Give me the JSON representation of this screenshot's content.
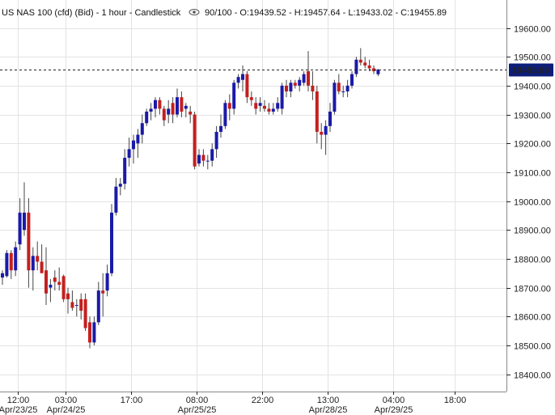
{
  "header": {
    "instrument_label": "US NAS 100 (cfd) (Bid) - 1 hour - Candlestick",
    "settings_icon": "eye-icon",
    "ohlc_label": "90/100 - O:19439.52 - H:19457.64 - L:19433.02 - C:19455.89"
  },
  "colors": {
    "up": "#1a1aa8",
    "down": "#c41f1f",
    "wick": "#444444",
    "grid": "#e3e3e3",
    "axis": "#222222",
    "price_tag_bg": "#0d1d7a",
    "price_tag_text": "#ffffff"
  },
  "chart_data": {
    "type": "candlestick",
    "title": "US NAS 100 (cfd) (Bid) - 1 hour - Candlestick",
    "xlabel": "",
    "ylabel": "",
    "ylim": [
      18340,
      19680
    ],
    "y_ticks": [
      18400,
      18500,
      18600,
      18700,
      18800,
      18900,
      19000,
      19100,
      19200,
      19300,
      19400,
      19500,
      19600
    ],
    "y_tick_labels": [
      "18400.00",
      "18500.00",
      "18600.00",
      "18700.00",
      "18800.00",
      "18900.00",
      "19000.00",
      "19100.00",
      "19200.00",
      "19300.00",
      "19400.00",
      "19500.00",
      "19600.00"
    ],
    "x_ticks": [
      {
        "index": 3.5,
        "time": "12:00",
        "date": "Apr/23/25"
      },
      {
        "index": 14.5,
        "time": "03:00",
        "date": "Apr/24/25"
      },
      {
        "index": 29.5,
        "time": "17:00",
        "date": ""
      },
      {
        "index": 44.5,
        "time": "08:00",
        "date": "Apr/25/25"
      },
      {
        "index": 59.5,
        "time": "22:00",
        "date": ""
      },
      {
        "index": 74.5,
        "time": "13:00",
        "date": "Apr/28/25"
      },
      {
        "index": 89.5,
        "time": "04:00",
        "date": "Apr/29/25"
      },
      {
        "index": 103.5,
        "time": "18:00",
        "date": ""
      }
    ],
    "current_price": 19455.89,
    "current_price_label": "19455.89",
    "grid": true,
    "candles": [
      {
        "o": 18735,
        "h": 18760,
        "l": 18710,
        "c": 18750
      },
      {
        "o": 18740,
        "h": 18830,
        "l": 18735,
        "c": 18820
      },
      {
        "o": 18820,
        "h": 18830,
        "l": 18730,
        "c": 18760
      },
      {
        "o": 18760,
        "h": 18860,
        "l": 18740,
        "c": 18840
      },
      {
        "o": 18850,
        "h": 19010,
        "l": 18830,
        "c": 18960
      },
      {
        "o": 18900,
        "h": 19065,
        "l": 18880,
        "c": 18960
      },
      {
        "o": 18960,
        "h": 19010,
        "l": 18700,
        "c": 18760
      },
      {
        "o": 18760,
        "h": 18840,
        "l": 18690,
        "c": 18810
      },
      {
        "o": 18810,
        "h": 18860,
        "l": 18760,
        "c": 18790
      },
      {
        "o": 18790,
        "h": 18850,
        "l": 18760,
        "c": 18750
      },
      {
        "o": 18760,
        "h": 18840,
        "l": 18640,
        "c": 18680
      },
      {
        "o": 18700,
        "h": 18730,
        "l": 18650,
        "c": 18710
      },
      {
        "o": 18735,
        "h": 18760,
        "l": 18690,
        "c": 18720
      },
      {
        "o": 18720,
        "h": 18770,
        "l": 18690,
        "c": 18710
      },
      {
        "o": 18740,
        "h": 18745,
        "l": 18650,
        "c": 18660
      },
      {
        "o": 18680,
        "h": 18700,
        "l": 18610,
        "c": 18660
      },
      {
        "o": 18650,
        "h": 18690,
        "l": 18620,
        "c": 18630
      },
      {
        "o": 18640,
        "h": 18660,
        "l": 18600,
        "c": 18640
      },
      {
        "o": 18660,
        "h": 18680,
        "l": 18590,
        "c": 18620
      },
      {
        "o": 18660,
        "h": 18680,
        "l": 18550,
        "c": 18560
      },
      {
        "o": 18580,
        "h": 18600,
        "l": 18490,
        "c": 18510
      },
      {
        "o": 18510,
        "h": 18600,
        "l": 18500,
        "c": 18580
      },
      {
        "o": 18580,
        "h": 18720,
        "l": 18570,
        "c": 18690
      },
      {
        "o": 18690,
        "h": 18750,
        "l": 18600,
        "c": 18680
      },
      {
        "o": 18690,
        "h": 18780,
        "l": 18670,
        "c": 18750
      },
      {
        "o": 18750,
        "h": 18990,
        "l": 18740,
        "c": 18960
      },
      {
        "o": 18960,
        "h": 19080,
        "l": 18950,
        "c": 19050
      },
      {
        "o": 19050,
        "h": 19080,
        "l": 19020,
        "c": 19060
      },
      {
        "o": 19060,
        "h": 19180,
        "l": 19040,
        "c": 19150
      },
      {
        "o": 19150,
        "h": 19220,
        "l": 19120,
        "c": 19180
      },
      {
        "o": 19180,
        "h": 19230,
        "l": 19130,
        "c": 19210
      },
      {
        "o": 19200,
        "h": 19250,
        "l": 19150,
        "c": 19230
      },
      {
        "o": 19230,
        "h": 19300,
        "l": 19200,
        "c": 19270
      },
      {
        "o": 19270,
        "h": 19320,
        "l": 19260,
        "c": 19310
      },
      {
        "o": 19310,
        "h": 19340,
        "l": 19280,
        "c": 19320
      },
      {
        "o": 19320,
        "h": 19360,
        "l": 19290,
        "c": 19350
      },
      {
        "o": 19350,
        "h": 19360,
        "l": 19300,
        "c": 19320
      },
      {
        "o": 19320,
        "h": 19330,
        "l": 19260,
        "c": 19280
      },
      {
        "o": 19300,
        "h": 19350,
        "l": 19270,
        "c": 19320
      },
      {
        "o": 19340,
        "h": 19360,
        "l": 19270,
        "c": 19300
      },
      {
        "o": 19300,
        "h": 19390,
        "l": 19290,
        "c": 19360
      },
      {
        "o": 19360,
        "h": 19380,
        "l": 19290,
        "c": 19310
      },
      {
        "o": 19320,
        "h": 19340,
        "l": 19290,
        "c": 19330
      },
      {
        "o": 19310,
        "h": 19330,
        "l": 19270,
        "c": 19300
      },
      {
        "o": 19300,
        "h": 19310,
        "l": 19110,
        "c": 19120
      },
      {
        "o": 19130,
        "h": 19180,
        "l": 19120,
        "c": 19160
      },
      {
        "o": 19160,
        "h": 19180,
        "l": 19120,
        "c": 19140
      },
      {
        "o": 19140,
        "h": 19160,
        "l": 19110,
        "c": 19140
      },
      {
        "o": 19140,
        "h": 19200,
        "l": 19120,
        "c": 19180
      },
      {
        "o": 19180,
        "h": 19260,
        "l": 19150,
        "c": 19240
      },
      {
        "o": 19240,
        "h": 19300,
        "l": 19220,
        "c": 19260
      },
      {
        "o": 19260,
        "h": 19350,
        "l": 19250,
        "c": 19340
      },
      {
        "o": 19340,
        "h": 19370,
        "l": 19280,
        "c": 19320
      },
      {
        "o": 19320,
        "h": 19420,
        "l": 19300,
        "c": 19410
      },
      {
        "o": 19410,
        "h": 19440,
        "l": 19390,
        "c": 19430
      },
      {
        "o": 19420,
        "h": 19470,
        "l": 19380,
        "c": 19440
      },
      {
        "o": 19440,
        "h": 19450,
        "l": 19340,
        "c": 19360
      },
      {
        "o": 19360,
        "h": 19380,
        "l": 19330,
        "c": 19350
      },
      {
        "o": 19340,
        "h": 19360,
        "l": 19300,
        "c": 19320
      },
      {
        "o": 19330,
        "h": 19360,
        "l": 19310,
        "c": 19340
      },
      {
        "o": 19330,
        "h": 19350,
        "l": 19310,
        "c": 19320
      },
      {
        "o": 19320,
        "h": 19340,
        "l": 19300,
        "c": 19310
      },
      {
        "o": 19310,
        "h": 19340,
        "l": 19300,
        "c": 19320
      },
      {
        "o": 19320,
        "h": 19360,
        "l": 19310,
        "c": 19340
      },
      {
        "o": 19320,
        "h": 19410,
        "l": 19300,
        "c": 19400
      },
      {
        "o": 19400,
        "h": 19420,
        "l": 19360,
        "c": 19380
      },
      {
        "o": 19380,
        "h": 19420,
        "l": 19360,
        "c": 19410
      },
      {
        "o": 19410,
        "h": 19420,
        "l": 19390,
        "c": 19400
      },
      {
        "o": 19400,
        "h": 19430,
        "l": 19380,
        "c": 19420
      },
      {
        "o": 19410,
        "h": 19450,
        "l": 19400,
        "c": 19440
      },
      {
        "o": 19450,
        "h": 19520,
        "l": 19380,
        "c": 19400
      },
      {
        "o": 19400,
        "h": 19450,
        "l": 19350,
        "c": 19380
      },
      {
        "o": 19380,
        "h": 19400,
        "l": 19200,
        "c": 19240
      },
      {
        "o": 19240,
        "h": 19270,
        "l": 19180,
        "c": 19230
      },
      {
        "o": 19230,
        "h": 19280,
        "l": 19160,
        "c": 19260
      },
      {
        "o": 19260,
        "h": 19340,
        "l": 19240,
        "c": 19310
      },
      {
        "o": 19310,
        "h": 19420,
        "l": 19300,
        "c": 19410
      },
      {
        "o": 19410,
        "h": 19440,
        "l": 19370,
        "c": 19380
      },
      {
        "o": 19380,
        "h": 19400,
        "l": 19360,
        "c": 19380
      },
      {
        "o": 19380,
        "h": 19420,
        "l": 19360,
        "c": 19400
      },
      {
        "o": 19400,
        "h": 19450,
        "l": 19390,
        "c": 19440
      },
      {
        "o": 19440,
        "h": 19500,
        "l": 19430,
        "c": 19490
      },
      {
        "o": 19490,
        "h": 19530,
        "l": 19470,
        "c": 19480
      },
      {
        "o": 19480,
        "h": 19500,
        "l": 19460,
        "c": 19470
      },
      {
        "o": 19470,
        "h": 19490,
        "l": 19450,
        "c": 19460
      },
      {
        "o": 19460,
        "h": 19470,
        "l": 19440,
        "c": 19450
      },
      {
        "o": 19439.52,
        "h": 19457.64,
        "l": 19433.02,
        "c": 19455.89
      }
    ]
  }
}
